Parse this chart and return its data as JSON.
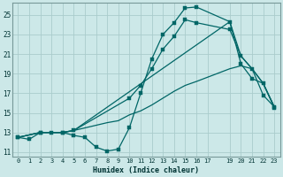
{
  "xlabel": "Humidex (Indice chaleur)",
  "bg_color": "#cce8e8",
  "grid_color": "#aacccc",
  "line_color": "#006666",
  "xlim": [
    -0.5,
    23.5
  ],
  "ylim": [
    10.5,
    26.2
  ],
  "xticks": [
    0,
    1,
    2,
    3,
    4,
    5,
    6,
    7,
    8,
    9,
    10,
    11,
    12,
    13,
    14,
    15,
    16,
    17,
    19,
    20,
    21,
    22,
    23
  ],
  "xtick_labels": [
    "0",
    "1",
    "2",
    "3",
    "4",
    "5",
    "6",
    "7",
    "8",
    "9",
    "10",
    "11",
    "12",
    "13",
    "14",
    "15",
    "16",
    "17",
    "19",
    "20",
    "21",
    "22",
    "23"
  ],
  "yticks": [
    11,
    13,
    15,
    17,
    19,
    21,
    23,
    25
  ],
  "line1_x": [
    0,
    1,
    2,
    3,
    4,
    5,
    6,
    7,
    8,
    9,
    10,
    11,
    12,
    13,
    14,
    15,
    16,
    19,
    20,
    21,
    22,
    23
  ],
  "line1_y": [
    12.5,
    12.3,
    13.0,
    13.0,
    13.0,
    12.7,
    12.5,
    11.5,
    11.1,
    11.3,
    13.5,
    17.0,
    20.5,
    23.0,
    24.2,
    25.7,
    25.8,
    24.3,
    20.0,
    18.5,
    18.0,
    15.5
  ],
  "line2_x": [
    0,
    2,
    4,
    5,
    10,
    11,
    12,
    13,
    14,
    15,
    16,
    19,
    20,
    21,
    22,
    23
  ],
  "line2_y": [
    12.5,
    13.0,
    13.0,
    13.2,
    16.5,
    17.8,
    19.5,
    21.5,
    22.8,
    24.5,
    24.2,
    23.5,
    20.8,
    19.5,
    16.8,
    15.6
  ],
  "line3_x": [
    0,
    2,
    3,
    4,
    5,
    19,
    20,
    21,
    22,
    23
  ],
  "line3_y": [
    12.5,
    13.0,
    13.0,
    13.0,
    13.2,
    24.3,
    20.8,
    19.5,
    18.0,
    15.6
  ],
  "line4_x": [
    0,
    2,
    3,
    4,
    5,
    8,
    9,
    10,
    11,
    12,
    13,
    14,
    15,
    16,
    19,
    20,
    21,
    22,
    23
  ],
  "line4_y": [
    12.5,
    13.0,
    13.0,
    13.0,
    13.2,
    14.0,
    14.2,
    14.8,
    15.2,
    15.8,
    16.5,
    17.2,
    17.8,
    18.2,
    19.5,
    19.8,
    19.5,
    18.0,
    15.6
  ]
}
